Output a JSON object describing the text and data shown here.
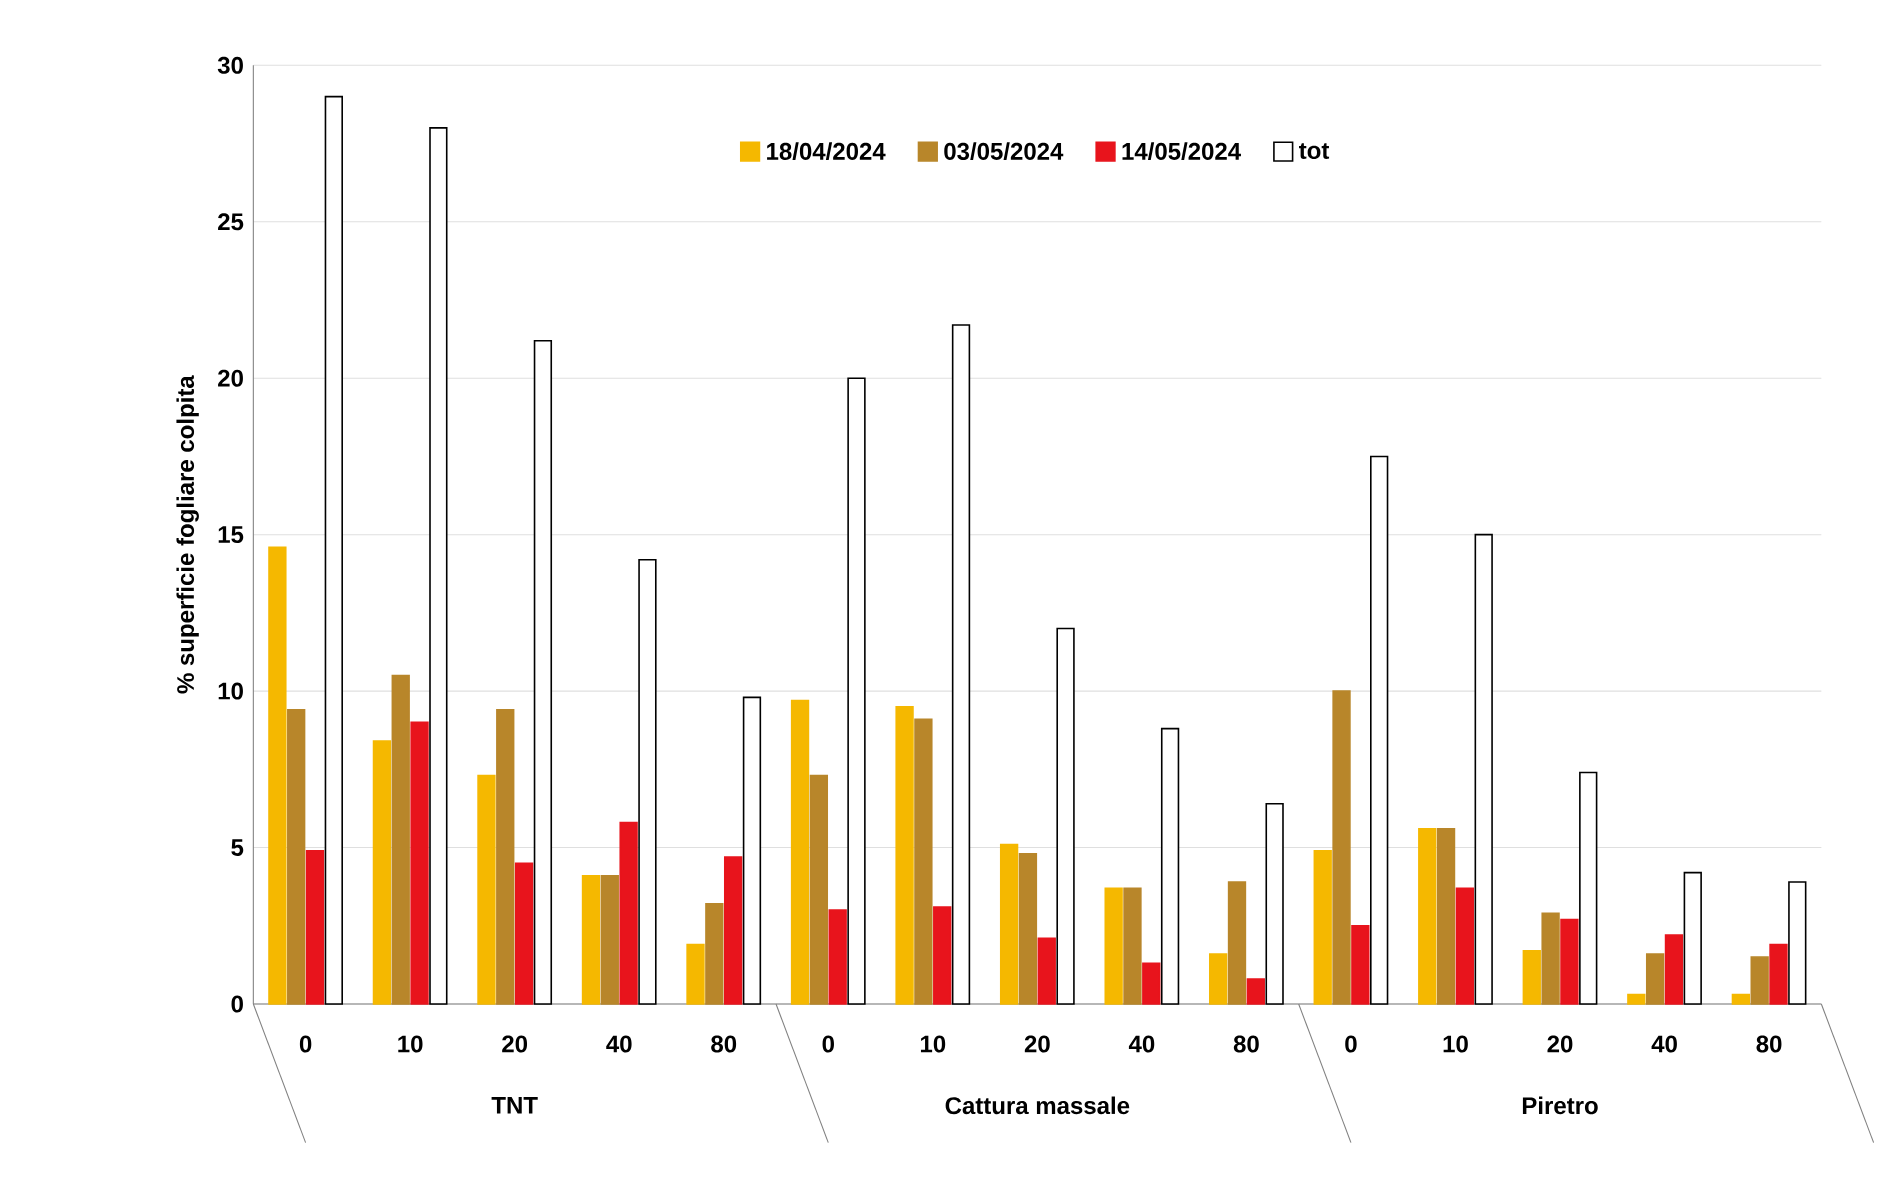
{
  "chart_data": {
    "type": "bar",
    "ylabel": "% superficie fogliare colpita",
    "categories": [
      "0",
      "10",
      "20",
      "40",
      "80",
      "0",
      "10",
      "20",
      "40",
      "80",
      "0",
      "10",
      "20",
      "40",
      "80"
    ],
    "annotations": [
      "TNT",
      "Cattura massale",
      "Piretro"
    ],
    "series": [
      {
        "name": "18/04/2024",
        "color": "#f5b800",
        "values": [
          14.6,
          8.4,
          7.3,
          4.1,
          1.9,
          9.7,
          9.5,
          5.1,
          3.7,
          1.6,
          4.9,
          5.6,
          1.7,
          0.3,
          0.3
        ]
      },
      {
        "name": "03/05/2024",
        "color": "#b8862a",
        "values": [
          9.4,
          10.5,
          9.4,
          4.1,
          3.2,
          7.3,
          9.1,
          4.8,
          3.7,
          3.9,
          10.0,
          5.6,
          2.9,
          1.6,
          1.5
        ]
      },
      {
        "name": "14/05/2024",
        "color": "#e8141c",
        "values": [
          4.9,
          9.0,
          4.5,
          5.8,
          4.7,
          3.0,
          3.1,
          2.1,
          1.3,
          0.8,
          2.5,
          3.7,
          2.7,
          2.2,
          1.9
        ]
      },
      {
        "name": "tot",
        "color": "#ffffff",
        "values": [
          29.0,
          28.0,
          21.2,
          14.2,
          9.8,
          20.0,
          21.7,
          12.0,
          8.8,
          6.4,
          17.5,
          15.0,
          7.4,
          4.2,
          3.9
        ]
      }
    ],
    "ylim": [
      0,
      30
    ],
    "yticks": [
      0,
      5,
      10,
      15,
      20,
      25,
      30
    ],
    "grid": "y",
    "legend": "top"
  }
}
